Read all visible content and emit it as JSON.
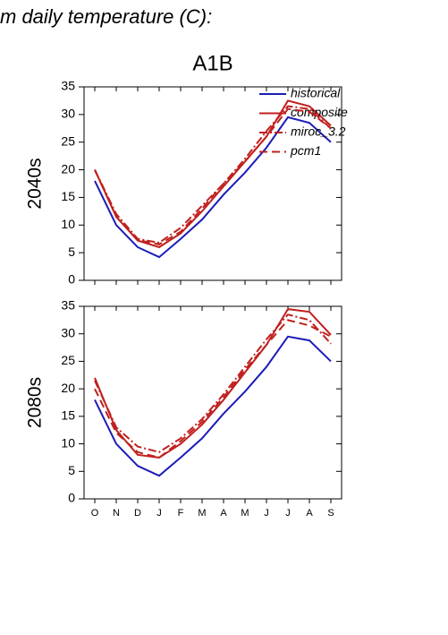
{
  "header": "m daily temperature (C):",
  "chart_data": [
    {
      "type": "line",
      "title": "A1B",
      "ylabel": "2040s",
      "ylim": [
        0,
        35
      ],
      "yticks": [
        0,
        5,
        10,
        15,
        20,
        25,
        30,
        35
      ],
      "categories": [
        null,
        null,
        null,
        null,
        null,
        null,
        null,
        null,
        null,
        null,
        null,
        null
      ],
      "legend": true,
      "series": [
        {
          "name": "historical",
          "color": "#1c1cb8",
          "dash": "solid",
          "values": [
            18,
            10,
            6,
            4.2,
            7.5,
            11,
            15.5,
            19.5,
            24,
            29.5,
            28.5,
            25
          ]
        },
        {
          "name": "composite",
          "color": "#c0201e",
          "dash": "solid",
          "values": [
            20,
            11.5,
            7.2,
            6,
            8.5,
            12.5,
            17,
            21.5,
            26,
            32.5,
            31.5,
            28
          ]
        },
        {
          "name": "miroc_3.2",
          "color": "#c0201e",
          "dash": "dashdot",
          "values": [
            20,
            12,
            7.5,
            6.8,
            9.5,
            13.5,
            17.5,
            22,
            27,
            31.5,
            31,
            27.5
          ]
        },
        {
          "name": "pcm1",
          "color": "#c0201e",
          "dash": "dashed",
          "values": [
            20,
            11.5,
            7.3,
            6.5,
            8.8,
            13,
            17.5,
            21.5,
            26,
            31,
            30.5,
            27.5
          ]
        }
      ]
    },
    {
      "type": "line",
      "ylabel": "2080s",
      "ylim": [
        0,
        35
      ],
      "yticks": [
        0,
        5,
        10,
        15,
        20,
        25,
        30,
        35
      ],
      "categories": [
        "O",
        "N",
        "D",
        "J",
        "F",
        "M",
        "A",
        "M",
        "J",
        "J",
        "A",
        "S"
      ],
      "legend": false,
      "series": [
        {
          "color": "#1c1cb8",
          "dash": "solid",
          "values": [
            18,
            10,
            6,
            4.2,
            7.5,
            11,
            15.5,
            19.5,
            24,
            29.5,
            28.8,
            25
          ]
        },
        {
          "color": "#c0201e",
          "dash": "solid",
          "values": [
            22,
            12.5,
            8,
            7.5,
            10,
            13.5,
            18,
            23,
            28,
            34.5,
            34,
            29.8
          ]
        },
        {
          "color": "#c0201e",
          "dash": "dashdot",
          "values": [
            21.5,
            13,
            9.5,
            8.5,
            11,
            14.5,
            19,
            24,
            29,
            33.5,
            32.5,
            28.2
          ]
        },
        {
          "color": "#c0201e",
          "dash": "dashed",
          "values": [
            20,
            12,
            8.5,
            7.5,
            10.5,
            14,
            18.5,
            23.5,
            28,
            32.5,
            31.5,
            29.5
          ]
        }
      ]
    }
  ]
}
